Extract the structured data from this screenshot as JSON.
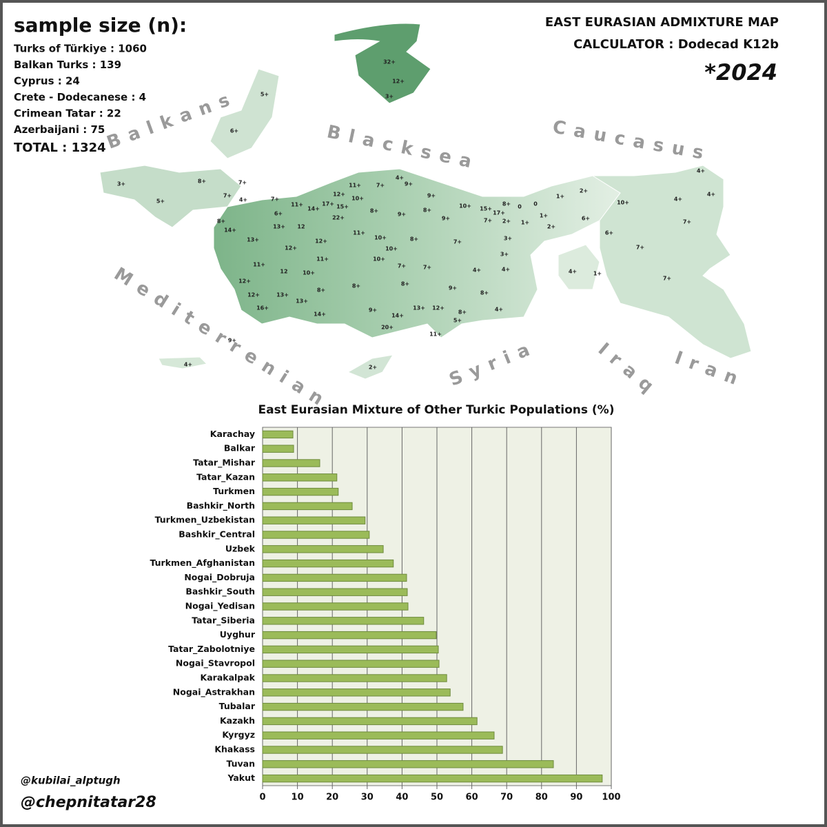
{
  "header": {
    "sample_title": "sample size (n):",
    "samples": [
      "Turks of Türkiye : 1060",
      "Balkan Turks : 139",
      "Cyprus : 24",
      "Crete - Dodecanese : 4",
      "Crimean Tatar : 22",
      "Azerbaijani : 75"
    ],
    "total": "TOTAL : 1324",
    "title_lines": [
      "EAST EURASIAN ADMIXTURE MAP",
      "CALCULATOR : Dodecad K12b"
    ],
    "year": "*2024"
  },
  "map": {
    "regions": [
      "Balkans",
      "Blacksea",
      "Caucasus",
      "Mediterrenian",
      "Syria",
      "Iraq",
      "Iran"
    ],
    "labels": [
      "32+",
      "12+",
      "3+",
      "5+",
      "6+",
      "3+",
      "5+",
      "8+",
      "7+",
      "7+",
      "4+",
      "7+",
      "8+",
      "6+",
      "11+",
      "14+",
      "17+",
      "12+",
      "11+",
      "10+",
      "15+",
      "22+",
      "8+",
      "7+",
      "4+",
      "9+",
      "9+",
      "8+",
      "9+",
      "9+",
      "10+",
      "15+",
      "8+",
      "17+",
      "0",
      "0",
      "1+",
      "2+",
      "7+",
      "1+",
      "1+",
      "2+",
      "2+",
      "6+",
      "10+",
      "4+",
      "4+",
      "4+",
      "7+",
      "6+",
      "7+",
      "7+",
      "4+",
      "1+",
      "14+",
      "13+",
      "12",
      "13+",
      "12+",
      "12+",
      "11+",
      "10+",
      "10+",
      "8+",
      "7+",
      "3+",
      "3+",
      "11+",
      "12",
      "11+",
      "10+",
      "7+",
      "7+",
      "4+",
      "4+",
      "12+",
      "10+",
      "8+",
      "8+",
      "8+",
      "9+",
      "8+",
      "12+",
      "13+",
      "13+",
      "16+",
      "14+",
      "9+",
      "14+",
      "13+",
      "12+",
      "8+",
      "4+",
      "20+",
      "5+",
      "11+",
      "9+",
      "4+",
      "2+"
    ]
  },
  "chart_data": {
    "type": "bar",
    "orientation": "horizontal",
    "title": "East Eurasian Mixture of Other Turkic Populations (%)",
    "categories": [
      "Karachay",
      "Balkar",
      "Tatar_Mishar",
      "Tatar_Kazan",
      "Turkmen",
      "Bashkir_North",
      "Turkmen_Uzbekistan",
      "Bashkir_Central",
      "Uzbek",
      "Turkmen_Afghanistan",
      "Nogai_Dobruja",
      "Bashkir_South",
      "Nogai_Yedisan",
      "Tatar_Siberia",
      "Uyghur",
      "Tatar_Zabolotniye",
      "Nogai_Stavropol",
      "Karakalpak",
      "Nogai_Astrakhan",
      "Tubalar",
      "Kazakh",
      "Kyrgyz",
      "Khakass",
      "Tuvan",
      "Yakut"
    ],
    "values": [
      8.7,
      8.9,
      16.4,
      21.3,
      21.7,
      25.7,
      29.4,
      30.6,
      34.6,
      37.5,
      41.3,
      41.5,
      41.7,
      46.2,
      49.8,
      50.4,
      50.6,
      52.8,
      53.8,
      57.5,
      61.5,
      66.4,
      68.8,
      83.4,
      97.4
    ],
    "color": "#9bbb59",
    "xlim": [
      0,
      100
    ],
    "xticks": [
      0,
      10,
      20,
      30,
      40,
      50,
      60,
      70,
      80,
      90,
      100
    ],
    "grid": true
  },
  "credits": [
    "@kubilai_alptugh",
    "@chepnitatar28"
  ]
}
